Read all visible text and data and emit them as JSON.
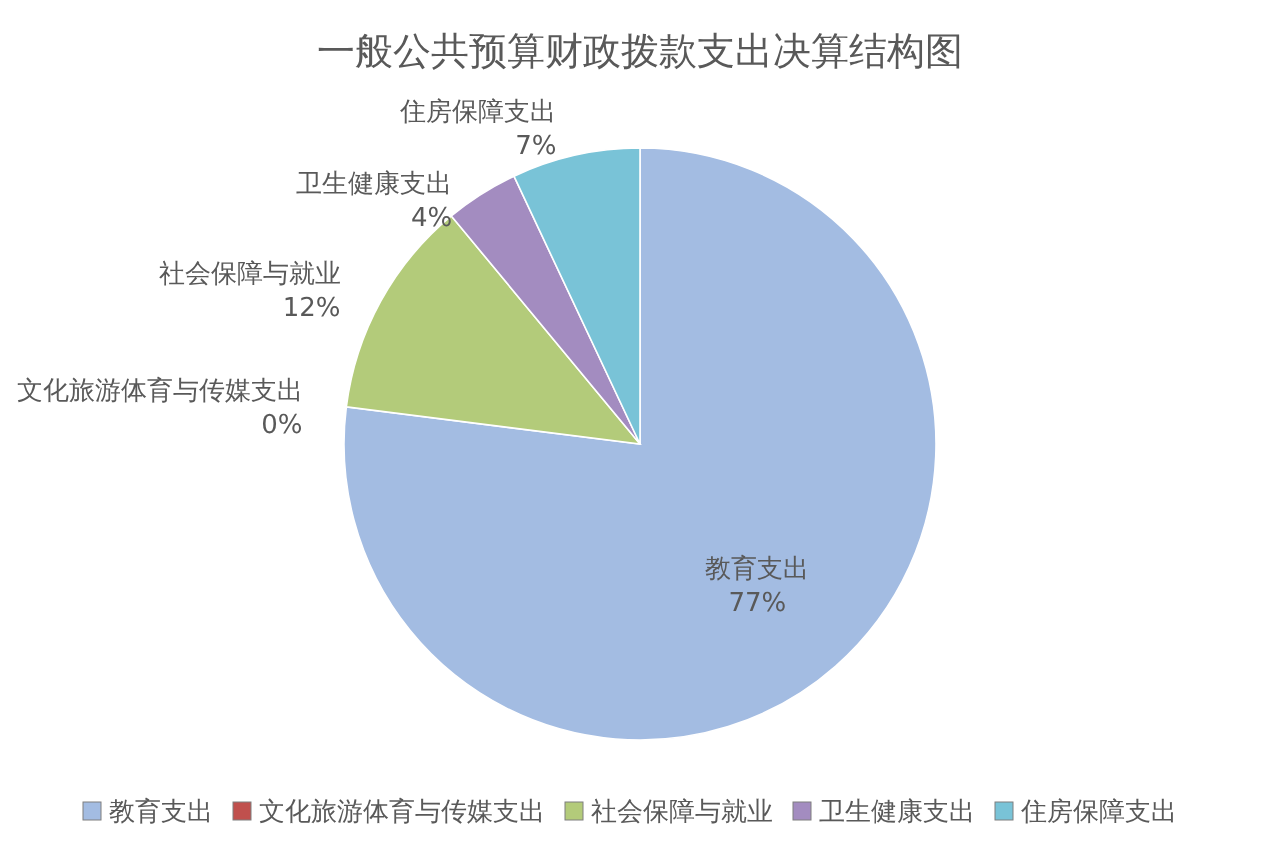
{
  "chart_data": {
    "type": "pie",
    "title": "一般公共预算财政拨款支出决算结构图",
    "categories": [
      "教育支出",
      "文化旅游体育与传媒支出",
      "社会保障与就业",
      "卫生健康支出",
      "住房保障支出"
    ],
    "values": [
      77,
      0,
      12,
      4,
      7
    ],
    "value_labels": [
      "77%",
      "0%",
      "12%",
      "4%",
      "7%"
    ],
    "colors": [
      "#a3bce2",
      "#c0504d",
      "#b3cb7a",
      "#a38cc0",
      "#79c3d7"
    ],
    "legend": "bottom"
  }
}
